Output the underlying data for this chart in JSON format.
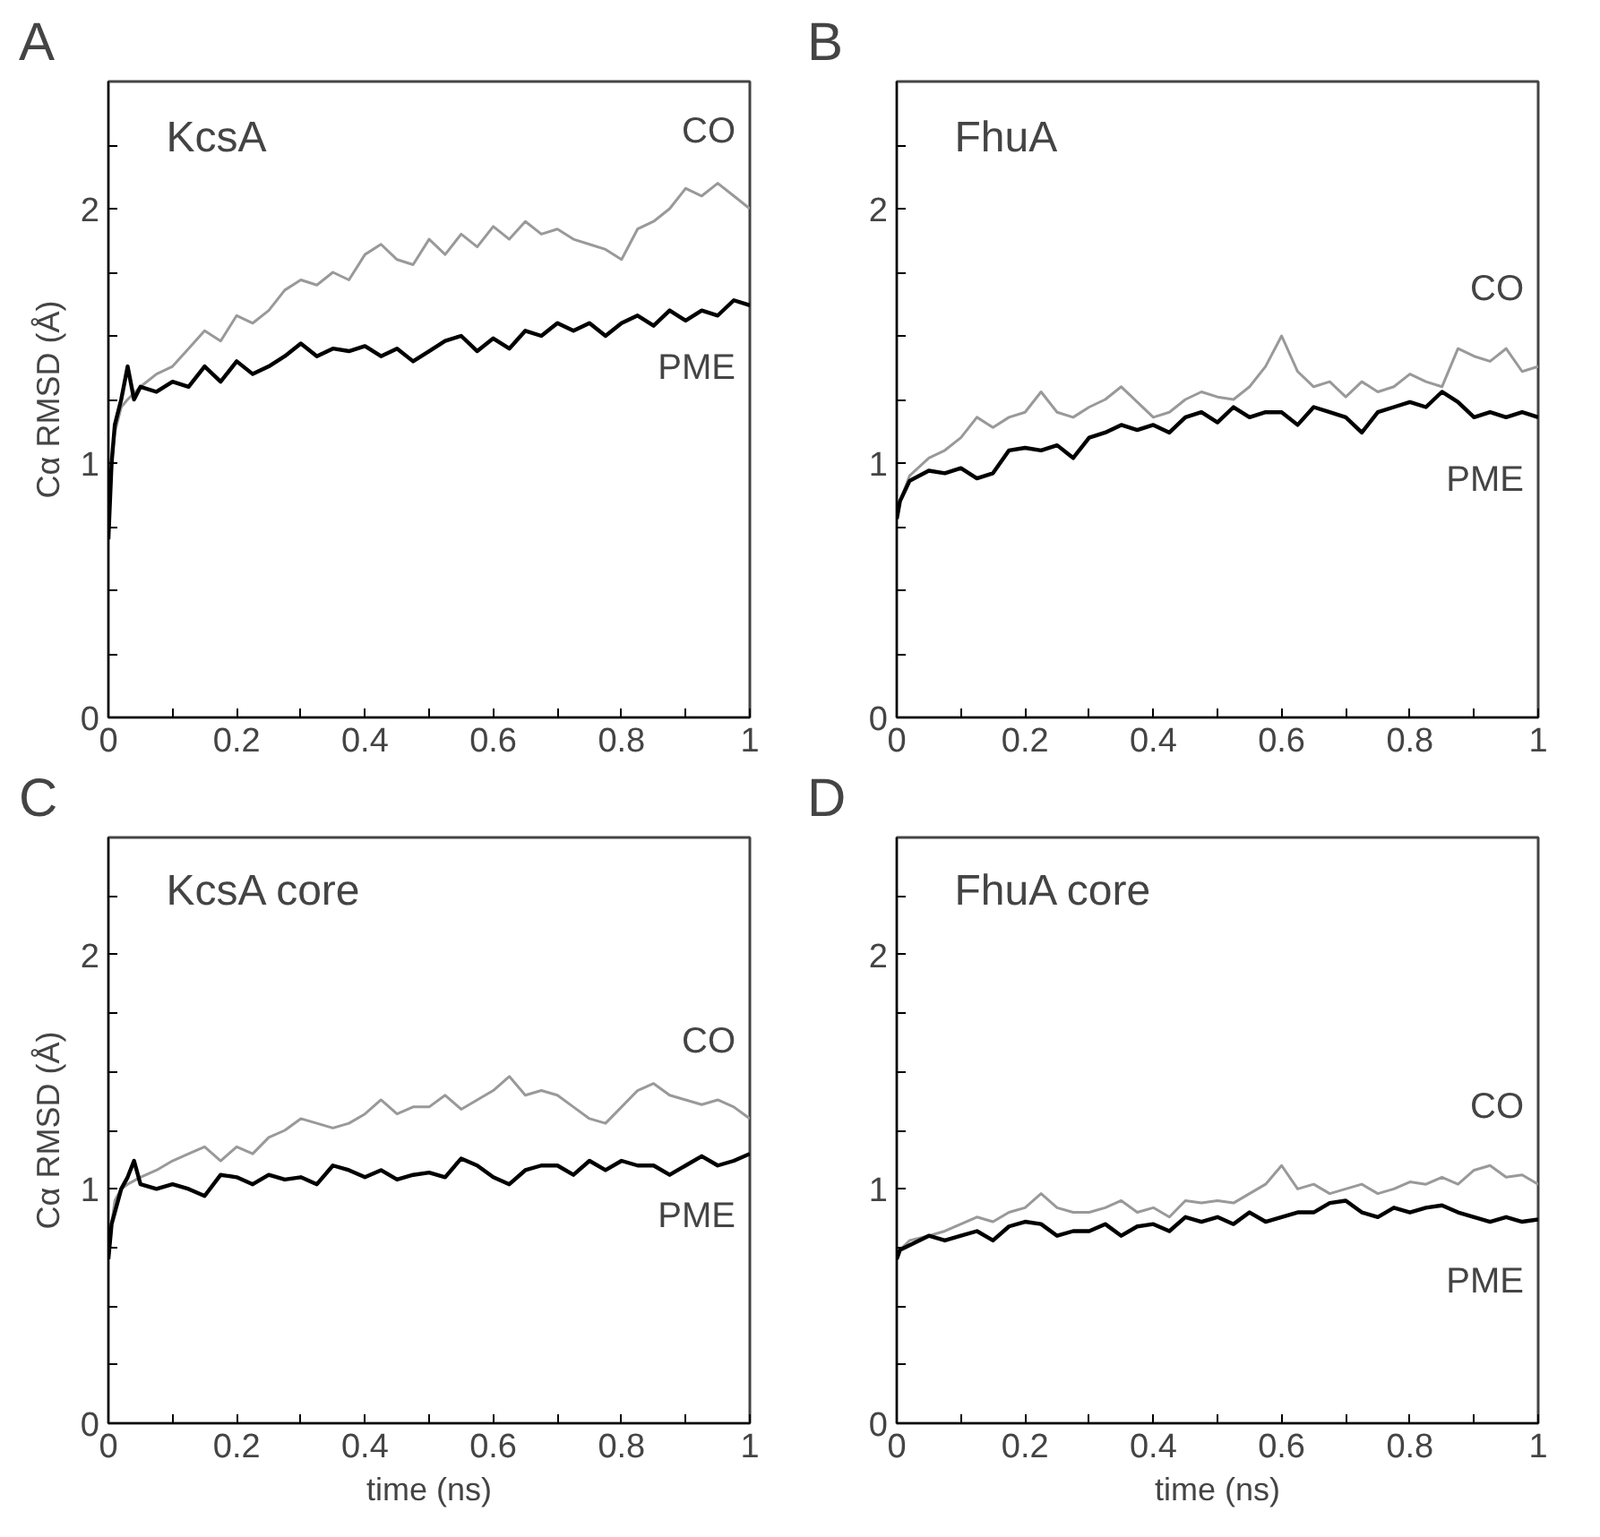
{
  "chart_data": [
    {
      "type": "line",
      "title": "A",
      "subtitle": "KcsA",
      "ylabel": "Cα RMSD (Å)",
      "xlim": [
        0,
        1
      ],
      "ylim": [
        0,
        2.5
      ],
      "xticks": [
        0,
        {
          "value": 0.1,
          "label": null
        },
        0.2,
        {
          "value": 0.3,
          "label": null
        },
        0.4,
        {
          "value": 0.5,
          "label": null
        },
        0.6,
        {
          "value": 0.7,
          "label": null
        },
        0.8,
        {
          "value": 0.9,
          "label": null
        },
        1
      ],
      "yticks": [
        0,
        {
          "value": 0.25,
          "label": null
        },
        {
          "value": 0.5,
          "label": null
        },
        {
          "value": 0.75,
          "label": null
        },
        1,
        {
          "value": 1.25,
          "label": null
        },
        {
          "value": 1.5,
          "label": null
        },
        {
          "value": 1.75,
          "label": null
        },
        2,
        {
          "value": 2.25,
          "label": null
        }
      ],
      "grid": false,
      "legend": false,
      "series": [
        {
          "name": "CO",
          "color": "#999999",
          "x": [
            0,
            0.005,
            0.01,
            0.02,
            0.03,
            0.05,
            0.075,
            0.1,
            0.125,
            0.15,
            0.175,
            0.2,
            0.225,
            0.25,
            0.275,
            0.3,
            0.325,
            0.35,
            0.375,
            0.4,
            0.425,
            0.45,
            0.475,
            0.5,
            0.525,
            0.55,
            0.575,
            0.6,
            0.625,
            0.65,
            0.675,
            0.7,
            0.725,
            0.75,
            0.775,
            0.8,
            0.825,
            0.85,
            0.875,
            0.9,
            0.925,
            0.95,
            0.975,
            1
          ],
          "values": [
            0.7,
            1.0,
            1.12,
            1.22,
            1.25,
            1.3,
            1.35,
            1.38,
            1.45,
            1.52,
            1.48,
            1.58,
            1.55,
            1.6,
            1.68,
            1.72,
            1.7,
            1.75,
            1.72,
            1.82,
            1.86,
            1.8,
            1.78,
            1.88,
            1.82,
            1.9,
            1.85,
            1.93,
            1.88,
            1.95,
            1.9,
            1.92,
            1.88,
            1.86,
            1.84,
            1.8,
            1.92,
            1.95,
            2.0,
            2.08,
            2.05,
            2.1,
            2.05,
            2.0
          ]
        },
        {
          "name": "PME",
          "color": "#000000",
          "x": [
            0,
            0.005,
            0.01,
            0.02,
            0.03,
            0.04,
            0.05,
            0.075,
            0.1,
            0.125,
            0.15,
            0.175,
            0.2,
            0.225,
            0.25,
            0.275,
            0.3,
            0.325,
            0.35,
            0.375,
            0.4,
            0.425,
            0.45,
            0.475,
            0.5,
            0.525,
            0.55,
            0.575,
            0.6,
            0.625,
            0.65,
            0.675,
            0.7,
            0.725,
            0.75,
            0.775,
            0.8,
            0.825,
            0.85,
            0.875,
            0.9,
            0.925,
            0.95,
            0.975,
            1
          ],
          "values": [
            0.7,
            1.0,
            1.15,
            1.25,
            1.38,
            1.25,
            1.3,
            1.28,
            1.32,
            1.3,
            1.38,
            1.32,
            1.4,
            1.35,
            1.38,
            1.42,
            1.47,
            1.42,
            1.45,
            1.44,
            1.46,
            1.42,
            1.45,
            1.4,
            1.44,
            1.48,
            1.5,
            1.44,
            1.49,
            1.45,
            1.52,
            1.5,
            1.55,
            1.52,
            1.55,
            1.5,
            1.55,
            1.58,
            1.54,
            1.6,
            1.56,
            1.6,
            1.58,
            1.64,
            1.62
          ]
        }
      ]
    },
    {
      "type": "line",
      "title": "B",
      "subtitle": "FhuA",
      "xlim": [
        0,
        1
      ],
      "ylim": [
        0,
        2.5
      ],
      "xticks": [
        0,
        {
          "value": 0.1,
          "label": null
        },
        0.2,
        {
          "value": 0.3,
          "label": null
        },
        0.4,
        {
          "value": 0.5,
          "label": null
        },
        0.6,
        {
          "value": 0.7,
          "label": null
        },
        0.8,
        {
          "value": 0.9,
          "label": null
        },
        1
      ],
      "yticks": [
        0,
        {
          "value": 0.25,
          "label": null
        },
        {
          "value": 0.5,
          "label": null
        },
        {
          "value": 0.75,
          "label": null
        },
        1,
        {
          "value": 1.25,
          "label": null
        },
        {
          "value": 1.5,
          "label": null
        },
        {
          "value": 1.75,
          "label": null
        },
        2,
        {
          "value": 2.25,
          "label": null
        }
      ],
      "grid": false,
      "legend": false,
      "series": [
        {
          "name": "CO",
          "color": "#999999",
          "x": [
            0,
            0.005,
            0.02,
            0.05,
            0.075,
            0.1,
            0.125,
            0.15,
            0.175,
            0.2,
            0.225,
            0.25,
            0.275,
            0.3,
            0.325,
            0.35,
            0.375,
            0.4,
            0.425,
            0.45,
            0.475,
            0.5,
            0.525,
            0.55,
            0.575,
            0.6,
            0.625,
            0.65,
            0.675,
            0.7,
            0.725,
            0.75,
            0.775,
            0.8,
            0.825,
            0.85,
            0.875,
            0.9,
            0.925,
            0.95,
            0.975,
            1
          ],
          "values": [
            0.78,
            0.85,
            0.95,
            1.02,
            1.05,
            1.1,
            1.18,
            1.14,
            1.18,
            1.2,
            1.28,
            1.2,
            1.18,
            1.22,
            1.25,
            1.3,
            1.24,
            1.18,
            1.2,
            1.25,
            1.28,
            1.26,
            1.25,
            1.3,
            1.38,
            1.5,
            1.36,
            1.3,
            1.32,
            1.26,
            1.32,
            1.28,
            1.3,
            1.35,
            1.32,
            1.3,
            1.45,
            1.42,
            1.4,
            1.45,
            1.36,
            1.38
          ]
        },
        {
          "name": "PME",
          "color": "#000000",
          "x": [
            0,
            0.005,
            0.02,
            0.05,
            0.075,
            0.1,
            0.125,
            0.15,
            0.175,
            0.2,
            0.225,
            0.25,
            0.275,
            0.3,
            0.325,
            0.35,
            0.375,
            0.4,
            0.425,
            0.45,
            0.475,
            0.5,
            0.525,
            0.55,
            0.575,
            0.6,
            0.625,
            0.65,
            0.675,
            0.7,
            0.725,
            0.75,
            0.775,
            0.8,
            0.825,
            0.85,
            0.875,
            0.9,
            0.925,
            0.95,
            0.975,
            1
          ],
          "values": [
            0.78,
            0.85,
            0.93,
            0.97,
            0.96,
            0.98,
            0.94,
            0.96,
            1.05,
            1.06,
            1.05,
            1.07,
            1.02,
            1.1,
            1.12,
            1.15,
            1.13,
            1.15,
            1.12,
            1.18,
            1.2,
            1.16,
            1.22,
            1.18,
            1.2,
            1.2,
            1.15,
            1.22,
            1.2,
            1.18,
            1.12,
            1.2,
            1.22,
            1.24,
            1.22,
            1.28,
            1.24,
            1.18,
            1.2,
            1.18,
            1.2,
            1.18
          ]
        }
      ]
    },
    {
      "type": "line",
      "title": "C",
      "subtitle": "KcsA core",
      "xlabel": "time (ns)",
      "ylabel": "Cα RMSD (Å)",
      "xlim": [
        0,
        1
      ],
      "ylim": [
        0,
        2.5
      ],
      "xticks": [
        0,
        {
          "value": 0.1,
          "label": null
        },
        0.2,
        {
          "value": 0.3,
          "label": null
        },
        0.4,
        {
          "value": 0.5,
          "label": null
        },
        0.6,
        {
          "value": 0.7,
          "label": null
        },
        0.8,
        {
          "value": 0.9,
          "label": null
        },
        1
      ],
      "yticks": [
        0,
        {
          "value": 0.25,
          "label": null
        },
        {
          "value": 0.5,
          "label": null
        },
        {
          "value": 0.75,
          "label": null
        },
        1,
        {
          "value": 1.25,
          "label": null
        },
        {
          "value": 1.5,
          "label": null
        },
        {
          "value": 1.75,
          "label": null
        },
        2,
        {
          "value": 2.25,
          "label": null
        }
      ],
      "grid": false,
      "legend": false,
      "series": [
        {
          "name": "CO",
          "color": "#999999",
          "x": [
            0,
            0.005,
            0.01,
            0.02,
            0.03,
            0.05,
            0.075,
            0.1,
            0.125,
            0.15,
            0.175,
            0.2,
            0.225,
            0.25,
            0.275,
            0.3,
            0.325,
            0.35,
            0.375,
            0.4,
            0.425,
            0.45,
            0.475,
            0.5,
            0.525,
            0.55,
            0.575,
            0.6,
            0.625,
            0.65,
            0.675,
            0.7,
            0.725,
            0.75,
            0.775,
            0.8,
            0.825,
            0.85,
            0.875,
            0.9,
            0.925,
            0.95,
            0.975,
            1
          ],
          "values": [
            0.7,
            0.85,
            0.95,
            1.0,
            1.02,
            1.05,
            1.08,
            1.12,
            1.15,
            1.18,
            1.12,
            1.18,
            1.15,
            1.22,
            1.25,
            1.3,
            1.28,
            1.26,
            1.28,
            1.32,
            1.38,
            1.32,
            1.35,
            1.35,
            1.4,
            1.34,
            1.38,
            1.42,
            1.48,
            1.4,
            1.42,
            1.4,
            1.35,
            1.3,
            1.28,
            1.35,
            1.42,
            1.45,
            1.4,
            1.38,
            1.36,
            1.38,
            1.35,
            1.3
          ]
        },
        {
          "name": "PME",
          "color": "#000000",
          "x": [
            0,
            0.005,
            0.01,
            0.02,
            0.03,
            0.04,
            0.05,
            0.075,
            0.1,
            0.125,
            0.15,
            0.175,
            0.2,
            0.225,
            0.25,
            0.275,
            0.3,
            0.325,
            0.35,
            0.375,
            0.4,
            0.425,
            0.45,
            0.475,
            0.5,
            0.525,
            0.55,
            0.575,
            0.6,
            0.625,
            0.65,
            0.675,
            0.7,
            0.725,
            0.75,
            0.775,
            0.8,
            0.825,
            0.85,
            0.875,
            0.9,
            0.925,
            0.95,
            0.975,
            1
          ],
          "values": [
            0.7,
            0.85,
            0.9,
            1.0,
            1.05,
            1.12,
            1.02,
            1.0,
            1.02,
            1.0,
            0.97,
            1.06,
            1.05,
            1.02,
            1.06,
            1.04,
            1.05,
            1.02,
            1.1,
            1.08,
            1.05,
            1.08,
            1.04,
            1.06,
            1.07,
            1.05,
            1.13,
            1.1,
            1.05,
            1.02,
            1.08,
            1.1,
            1.1,
            1.06,
            1.12,
            1.08,
            1.12,
            1.1,
            1.1,
            1.06,
            1.1,
            1.14,
            1.1,
            1.12,
            1.15
          ]
        }
      ]
    },
    {
      "type": "line",
      "title": "D",
      "subtitle": "FhuA core",
      "xlabel": "time (ns)",
      "xlim": [
        0,
        1
      ],
      "ylim": [
        0,
        2.5
      ],
      "xticks": [
        0,
        {
          "value": 0.1,
          "label": null
        },
        0.2,
        {
          "value": 0.3,
          "label": null
        },
        0.4,
        {
          "value": 0.5,
          "label": null
        },
        0.6,
        {
          "value": 0.7,
          "label": null
        },
        0.8,
        {
          "value": 0.9,
          "label": null
        },
        1
      ],
      "yticks": [
        0,
        {
          "value": 0.25,
          "label": null
        },
        {
          "value": 0.5,
          "label": null
        },
        {
          "value": 0.75,
          "label": null
        },
        1,
        {
          "value": 1.25,
          "label": null
        },
        {
          "value": 1.5,
          "label": null
        },
        {
          "value": 1.75,
          "label": null
        },
        2,
        {
          "value": 2.25,
          "label": null
        }
      ],
      "grid": false,
      "legend": false,
      "series": [
        {
          "name": "CO",
          "color": "#999999",
          "x": [
            0,
            0.005,
            0.02,
            0.05,
            0.075,
            0.1,
            0.125,
            0.15,
            0.175,
            0.2,
            0.225,
            0.25,
            0.275,
            0.3,
            0.325,
            0.35,
            0.375,
            0.4,
            0.425,
            0.45,
            0.475,
            0.5,
            0.525,
            0.55,
            0.575,
            0.6,
            0.625,
            0.65,
            0.675,
            0.7,
            0.725,
            0.75,
            0.775,
            0.8,
            0.825,
            0.85,
            0.875,
            0.9,
            0.925,
            0.95,
            0.975,
            1
          ],
          "values": [
            0.7,
            0.74,
            0.78,
            0.8,
            0.82,
            0.85,
            0.88,
            0.86,
            0.9,
            0.92,
            0.98,
            0.92,
            0.9,
            0.9,
            0.92,
            0.95,
            0.9,
            0.92,
            0.88,
            0.95,
            0.94,
            0.95,
            0.94,
            0.98,
            1.02,
            1.1,
            1.0,
            1.02,
            0.98,
            1.0,
            1.02,
            0.98,
            1.0,
            1.03,
            1.02,
            1.05,
            1.02,
            1.08,
            1.1,
            1.05,
            1.06,
            1.02
          ]
        },
        {
          "name": "PME",
          "color": "#000000",
          "x": [
            0,
            0.005,
            0.02,
            0.05,
            0.075,
            0.1,
            0.125,
            0.15,
            0.175,
            0.2,
            0.225,
            0.25,
            0.275,
            0.3,
            0.325,
            0.35,
            0.375,
            0.4,
            0.425,
            0.45,
            0.475,
            0.5,
            0.525,
            0.55,
            0.575,
            0.6,
            0.625,
            0.65,
            0.675,
            0.7,
            0.725,
            0.75,
            0.775,
            0.8,
            0.825,
            0.85,
            0.875,
            0.9,
            0.925,
            0.95,
            0.975,
            1
          ],
          "values": [
            0.7,
            0.74,
            0.76,
            0.8,
            0.78,
            0.8,
            0.82,
            0.78,
            0.84,
            0.86,
            0.85,
            0.8,
            0.82,
            0.82,
            0.85,
            0.8,
            0.84,
            0.85,
            0.82,
            0.88,
            0.86,
            0.88,
            0.85,
            0.9,
            0.86,
            0.88,
            0.9,
            0.9,
            0.94,
            0.95,
            0.9,
            0.88,
            0.92,
            0.9,
            0.92,
            0.93,
            0.9,
            0.88,
            0.86,
            0.88,
            0.86,
            0.87
          ]
        }
      ]
    }
  ]
}
